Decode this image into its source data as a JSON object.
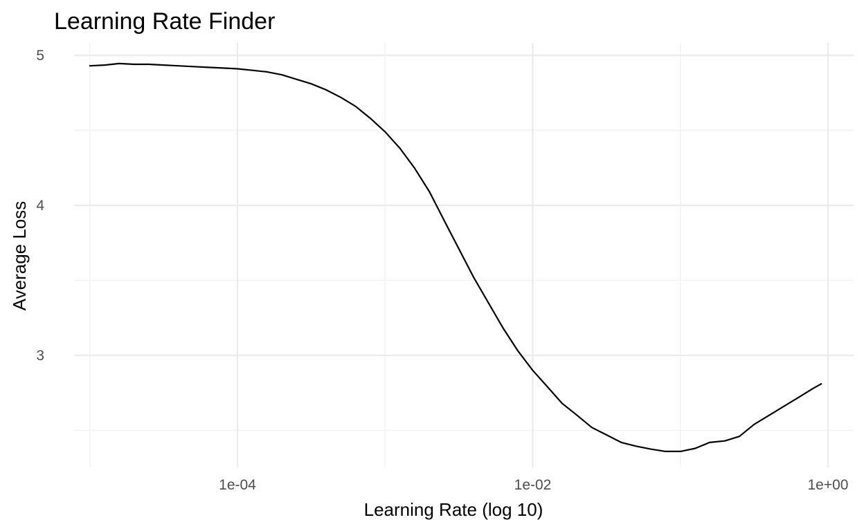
{
  "chart_data": {
    "type": "line",
    "title": "Learning Rate Finder",
    "xlabel": "Learning Rate (log 10)",
    "ylabel": "Average Loss",
    "x_scale": "log10",
    "xlim": [
      1e-06,
      1.0
    ],
    "ylim": [
      2.35,
      5.06
    ],
    "grid": true,
    "x_ticks": [
      {
        "value": 0.0001,
        "label": "1e-04"
      },
      {
        "value": 0.01,
        "label": "1e-02"
      },
      {
        "value": 1.0,
        "label": "1e+00"
      }
    ],
    "y_ticks": [
      {
        "value": 3,
        "label": "3"
      },
      {
        "value": 4,
        "label": "4"
      },
      {
        "value": 5,
        "label": "5"
      }
    ],
    "series": [
      {
        "color": "#000000",
        "x": [
          1e-05,
          1.26e-05,
          1.58e-05,
          2e-05,
          2.51e-05,
          3.16e-05,
          3.98e-05,
          5.01e-05,
          6.31e-05,
          7.94e-05,
          0.0001,
          0.000126,
          0.000158,
          0.0002,
          0.000251,
          0.000316,
          0.000398,
          0.000501,
          0.000631,
          0.000794,
          0.001,
          0.00126,
          0.00158,
          0.002,
          0.00251,
          0.00316,
          0.00398,
          0.00501,
          0.00631,
          0.00794,
          0.01,
          0.0126,
          0.0158,
          0.02,
          0.0251,
          0.0316,
          0.0398,
          0.0501,
          0.0631,
          0.0794,
          0.1,
          0.126,
          0.158,
          0.2,
          0.251,
          0.316,
          0.398,
          0.501,
          0.631,
          0.794,
          0.9
        ],
        "y": [
          4.93,
          4.935,
          4.945,
          4.94,
          4.94,
          4.935,
          4.93,
          4.925,
          4.92,
          4.915,
          4.91,
          4.9,
          4.89,
          4.87,
          4.84,
          4.81,
          4.77,
          4.72,
          4.66,
          4.58,
          4.49,
          4.38,
          4.25,
          4.09,
          3.9,
          3.71,
          3.52,
          3.35,
          3.18,
          3.03,
          2.9,
          2.79,
          2.68,
          2.6,
          2.52,
          2.47,
          2.42,
          2.395,
          2.375,
          2.36,
          2.36,
          2.38,
          2.42,
          2.43,
          2.46,
          2.54,
          2.6,
          2.66,
          2.72,
          2.78,
          2.81
        ]
      }
    ]
  }
}
